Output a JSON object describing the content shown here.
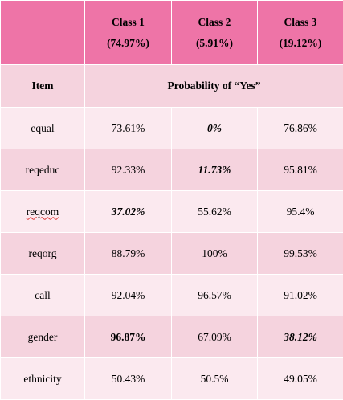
{
  "header": {
    "classes": [
      {
        "name": "Class 1",
        "share": "(74.97%)"
      },
      {
        "name": "Class 2",
        "share": "(5.91%)"
      },
      {
        "name": "Class 3",
        "share": "(19.12%)"
      }
    ]
  },
  "subheader": {
    "item_label": "Item",
    "probability_label": "Probability of “Yes”"
  },
  "rows": [
    {
      "item": "equal",
      "values": [
        "73.61%",
        "0%",
        "76.86%"
      ]
    },
    {
      "item": "reqeduc",
      "values": [
        "92.33%",
        "11.73%",
        "95.81%"
      ]
    },
    {
      "item": "reqcom",
      "values": [
        "37.02%",
        "55.62%",
        "95.4%"
      ]
    },
    {
      "item": "reqorg",
      "values": [
        "88.79%",
        "100%",
        "99.53%"
      ]
    },
    {
      "item": "call",
      "values": [
        "92.04%",
        "96.57%",
        "91.02%"
      ]
    },
    {
      "item": "gender",
      "values": [
        "96.87%",
        "67.09%",
        "38.12%"
      ]
    },
    {
      "item": "ethnicity",
      "values": [
        "50.43%",
        "50.5%",
        "49.05%"
      ]
    }
  ],
  "colors": {
    "header_bg": "#ee74a7",
    "row_dark": "#f5d3de",
    "row_light": "#fbe9ef"
  }
}
